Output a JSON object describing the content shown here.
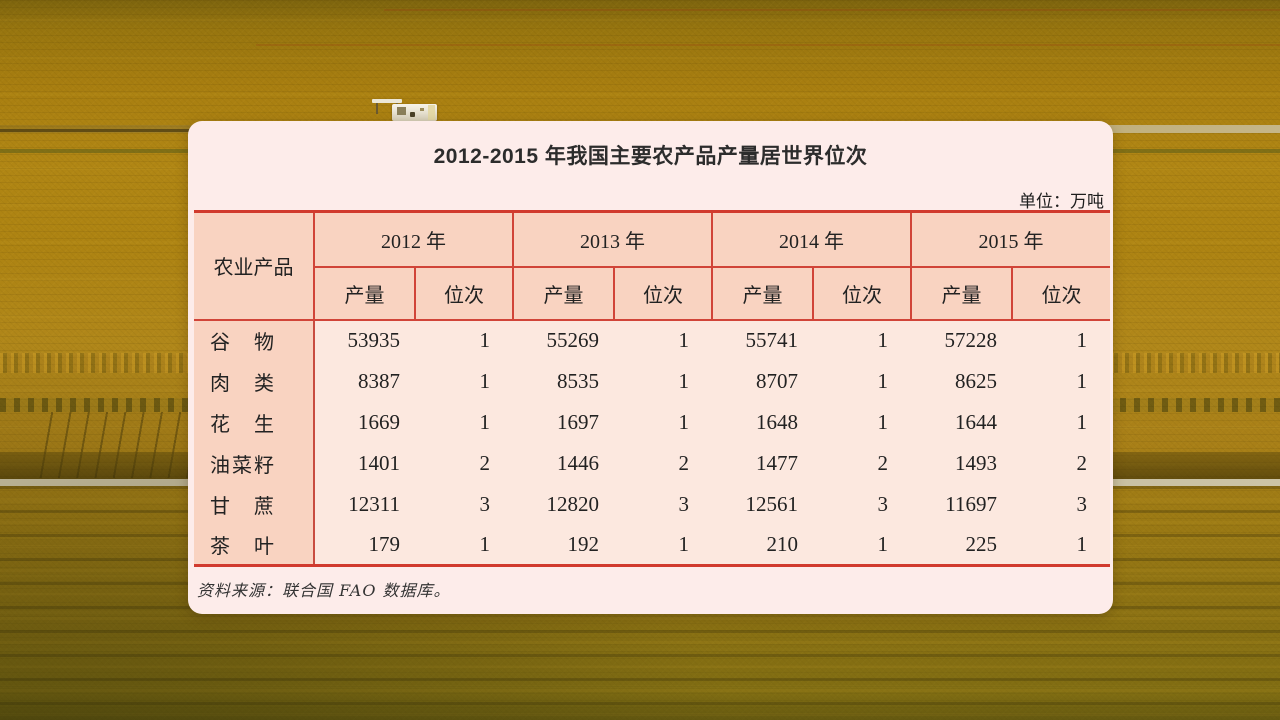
{
  "page": {
    "title": "2012-2015 年我国主要农产品产量居世界位次",
    "unit_label": "单位：万吨",
    "source_note": "资料来源：联合国 FAO 数据库。",
    "table_headers": {
      "product": "农业产品",
      "production": "产量",
      "rank": "位次",
      "years": [
        "2012 年",
        "2013 年",
        "2014 年",
        "2015 年"
      ]
    },
    "colors": {
      "border_red": "#d13a2e",
      "panel_bg": "#fdecea",
      "header_cell_bg": "#f9d3c1",
      "data_cell_bg": "#fce8df",
      "field_gold": "#a87f12"
    }
  },
  "chart_data": {
    "type": "table",
    "title": "2012-2015 年我国主要农产品产量居世界位次",
    "unit": "万吨",
    "row_header": "农业产品",
    "years": [
      "2012",
      "2013",
      "2014",
      "2015"
    ],
    "metrics": [
      "产量",
      "位次"
    ],
    "rows": [
      {
        "product": "谷物",
        "production": [
          53935,
          55269,
          55741,
          57228
        ],
        "rank": [
          1,
          1,
          1,
          1
        ]
      },
      {
        "product": "肉类",
        "production": [
          8387,
          8535,
          8707,
          8625
        ],
        "rank": [
          1,
          1,
          1,
          1
        ]
      },
      {
        "product": "花生",
        "production": [
          1669,
          1697,
          1648,
          1644
        ],
        "rank": [
          1,
          1,
          1,
          1
        ]
      },
      {
        "product": "油菜籽",
        "production": [
          1401,
          1446,
          1477,
          1493
        ],
        "rank": [
          2,
          2,
          2,
          2
        ]
      },
      {
        "product": "甘蔗",
        "production": [
          12311,
          12820,
          12561,
          11697
        ],
        "rank": [
          3,
          3,
          3,
          3
        ]
      },
      {
        "product": "茶叶",
        "production": [
          179,
          192,
          210,
          225
        ],
        "rank": [
          1,
          1,
          1,
          1
        ]
      }
    ],
    "source": "联合国 FAO 数据库"
  }
}
